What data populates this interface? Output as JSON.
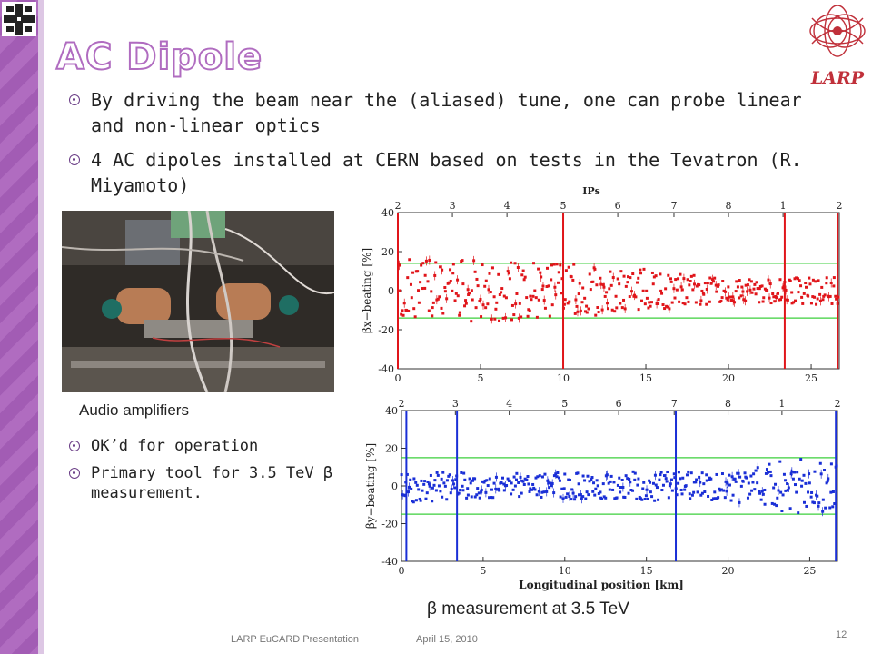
{
  "slide": {
    "title": "AC Dipole",
    "bullets": [
      "By driving the beam near the (aliased) tune, one can probe linear and non-linear optics",
      "4 AC dipoles installed at CERN based on tests in the Tevatron (R. Miyamoto)"
    ],
    "photo_caption": "Audio amplifiers",
    "sub_bullets": [
      "OK’d for operation",
      "Primary tool for 3.5 TeV β measurement."
    ],
    "plot_caption": "β measurement at 3.5 TeV",
    "logo_text": "LARP",
    "footer_left": "LARP EuCARD Presentation",
    "footer_date": "April 15, 2010",
    "page_number": "12"
  },
  "chart_data": [
    {
      "type": "scatter",
      "xlabel": "",
      "ylabel": "βx−beating [%]",
      "top_axis_label": "IPs",
      "top_ticks": [
        "2",
        "3",
        "4",
        "5",
        "6",
        "7",
        "8",
        "1",
        "2"
      ],
      "top_tick_positions_km": [
        0,
        3.3,
        6.6,
        10,
        13.3,
        16.7,
        20,
        23.3,
        26.7
      ],
      "xlim": [
        0,
        26.7
      ],
      "ylim": [
        -40,
        40
      ],
      "xticks": [
        0,
        5,
        10,
        15,
        20,
        25
      ],
      "yticks": [
        -40,
        -20,
        0,
        20,
        40
      ],
      "reference_lines": [
        14,
        -14
      ],
      "color": "#e0151a",
      "spikes_km": [
        0,
        10,
        23.4,
        26.6
      ],
      "series": [
        {
          "name": "",
          "envelope": [
            [
              0,
              16
            ],
            [
              5,
              16
            ],
            [
              10,
              14
            ],
            [
              15,
              11
            ],
            [
              20,
              6
            ],
            [
              25,
              7
            ],
            [
              26.7,
              8
            ]
          ]
        }
      ]
    },
    {
      "type": "scatter",
      "xlabel": "Longitudinal position [km]",
      "ylabel": "βy−beating [%]",
      "top_axis_label": "",
      "top_ticks": [
        "2",
        "3",
        "4",
        "5",
        "6",
        "7",
        "8",
        "1",
        "2"
      ],
      "top_tick_positions_km": [
        0,
        3.3,
        6.6,
        10,
        13.3,
        16.7,
        20,
        23.3,
        26.7
      ],
      "xlim": [
        0,
        26.7
      ],
      "ylim": [
        -40,
        40
      ],
      "xticks": [
        0,
        5,
        10,
        15,
        20,
        25
      ],
      "yticks": [
        -40,
        -20,
        0,
        20,
        40
      ],
      "reference_lines": [
        15,
        -15
      ],
      "color": "#1a2fd6",
      "spikes_km": [
        0.3,
        3.4,
        16.8,
        26.6
      ],
      "series": [
        {
          "name": "",
          "envelope": [
            [
              0,
              9
            ],
            [
              5,
              7
            ],
            [
              10,
              7
            ],
            [
              15,
              8
            ],
            [
              20,
              8
            ],
            [
              24,
              15
            ],
            [
              26.7,
              14
            ]
          ]
        }
      ]
    }
  ]
}
